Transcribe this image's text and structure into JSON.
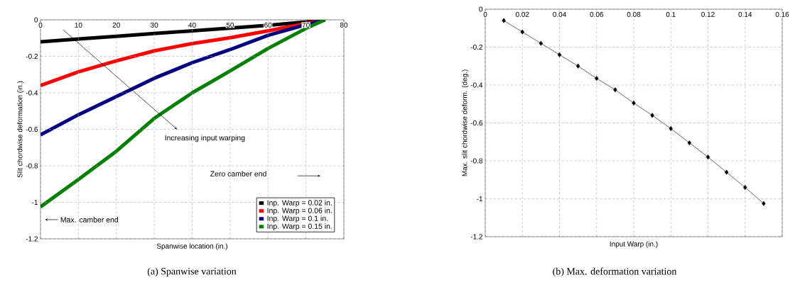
{
  "chart_data": [
    {
      "type": "line",
      "xlabel": "Spanwise location (in.)",
      "ylabel": "Slit chordwise deformation (in.)",
      "x": [
        0,
        10,
        20,
        30,
        40,
        50,
        60,
        70,
        75
      ],
      "series": [
        {
          "name": "Inp. Warp = 0.02 in.",
          "color": "#000000",
          "values": [
            -0.12,
            -0.105,
            -0.09,
            -0.075,
            -0.06,
            -0.045,
            -0.03,
            -0.012,
            0
          ]
        },
        {
          "name": "Inp. Warp = 0.06 in.",
          "color": "#ff0000",
          "values": [
            -0.36,
            -0.285,
            -0.225,
            -0.17,
            -0.13,
            -0.098,
            -0.06,
            -0.02,
            0
          ]
        },
        {
          "name": "Inp. Warp = 0.1 in.",
          "color": "#000080",
          "values": [
            -0.63,
            -0.52,
            -0.42,
            -0.32,
            -0.235,
            -0.163,
            -0.085,
            -0.027,
            0
          ]
        },
        {
          "name": "Inp. Warp = 0.15 in.",
          "color": "#008000",
          "values": [
            -1.025,
            -0.875,
            -0.72,
            -0.54,
            -0.4,
            -0.28,
            -0.157,
            -0.047,
            0
          ]
        }
      ],
      "xlim": [
        0,
        80
      ],
      "ylim": [
        -1.2,
        0
      ],
      "xticks": [
        0,
        10,
        20,
        30,
        40,
        50,
        60,
        70,
        80
      ],
      "yticks": [
        -1.2,
        -1,
        -0.8,
        -0.6,
        -0.4,
        -0.2,
        0
      ],
      "grid": true,
      "legend": "bottom right",
      "line_style": "solid",
      "annotations": [
        "Increasing input warping",
        "Zero camber end",
        "Max. camber end",
        "(a) Spanwise variation"
      ]
    },
    {
      "type": "line",
      "xlabel": "Input Warp (in.)",
      "ylabel": "Max. slit chordwise deform. (deg.)",
      "x": [
        0.01,
        0.02,
        0.03,
        0.04,
        0.05,
        0.06,
        0.07,
        0.08,
        0.09,
        0.1,
        0.11,
        0.12,
        0.13,
        0.14,
        0.15
      ],
      "series": [
        {
          "color": "#000000",
          "values": [
            -0.06,
            -0.12,
            -0.18,
            -0.24,
            -0.3,
            -0.365,
            -0.425,
            -0.495,
            -0.56,
            -0.63,
            -0.705,
            -0.78,
            -0.86,
            -0.94,
            -1.025
          ]
        }
      ],
      "xlim": [
        0,
        0.16
      ],
      "ylim": [
        -1.2,
        0
      ],
      "xticks": [
        0,
        0.02,
        0.04,
        0.06,
        0.08,
        0.1,
        0.12,
        0.14,
        0.16
      ],
      "yticks": [
        -1.2,
        -1,
        -0.8,
        -0.6,
        -0.4,
        -0.2,
        0
      ],
      "grid": true,
      "marker": "diamond",
      "line_style": "solid",
      "annotations": [
        "(b) Max. deformation variation"
      ]
    }
  ]
}
